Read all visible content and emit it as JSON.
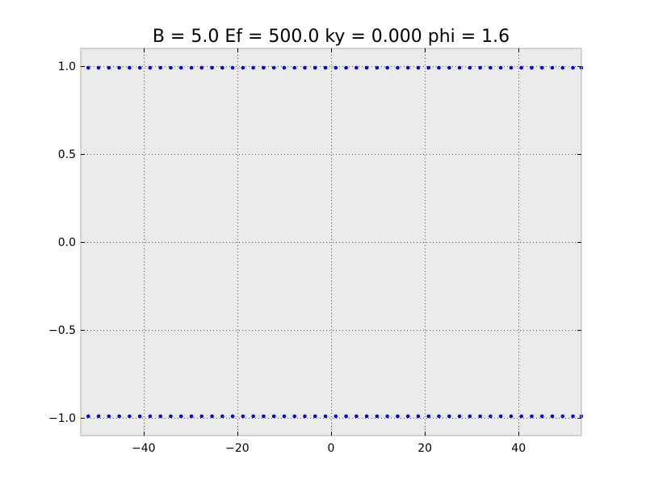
{
  "chart_data": {
    "type": "scatter",
    "title": "B = 5.0 Ef = 500.0 ky = 0.000 phi = 1.6",
    "xlabel": "",
    "ylabel": "",
    "xlim": [
      -53.4,
      53.4
    ],
    "ylim": [
      -1.1,
      1.1
    ],
    "xticks": [
      -40,
      -20,
      0,
      20,
      40
    ],
    "xtick_labels": [
      "−40",
      "−20",
      "0",
      "20",
      "40"
    ],
    "yticks": [
      1.0,
      0.5,
      0.0,
      -0.5,
      -1.0
    ],
    "ytick_labels": [
      "1.0",
      "0.5",
      "0.0",
      "−0.5",
      "−1.0"
    ],
    "grid": true,
    "series": [
      {
        "y": 0.99,
        "x": [
          -51.8,
          -49.6,
          -47.4,
          -45.2,
          -43.0,
          -40.8,
          -38.6,
          -36.4,
          -34.2,
          -32.0,
          -29.8,
          -27.6,
          -25.4,
          -23.2,
          -21.0,
          -18.8,
          -16.6,
          -14.4,
          -12.2,
          -10.0,
          -7.8,
          -5.6,
          -3.4,
          -1.2,
          1.0,
          3.2,
          5.4,
          7.6,
          9.8,
          12.0,
          14.2,
          16.4,
          18.6,
          20.8,
          23.0,
          25.2,
          27.4,
          29.6,
          31.8,
          34.0,
          36.2,
          38.4,
          40.6,
          42.8,
          45.0,
          47.2,
          49.4,
          51.6,
          53.4
        ]
      },
      {
        "y": -0.99,
        "x": [
          -51.8,
          -49.6,
          -47.4,
          -45.2,
          -43.0,
          -40.8,
          -38.6,
          -36.4,
          -34.2,
          -32.0,
          -29.8,
          -27.6,
          -25.4,
          -23.2,
          -21.0,
          -18.8,
          -16.6,
          -14.4,
          -12.2,
          -10.0,
          -7.8,
          -5.6,
          -3.4,
          -1.2,
          1.0,
          3.2,
          5.4,
          7.6,
          9.8,
          12.0,
          14.2,
          16.4,
          18.6,
          20.8,
          23.0,
          25.2,
          27.4,
          29.6,
          31.8,
          34.0,
          36.2,
          38.4,
          40.6,
          42.8,
          45.0,
          47.2,
          49.4,
          51.6,
          53.4
        ]
      }
    ],
    "colors": {
      "plot_background": "#ebebeb",
      "marker": "#0000ff",
      "axes_edge": "#b0b0b0",
      "grid": "#555555"
    }
  }
}
